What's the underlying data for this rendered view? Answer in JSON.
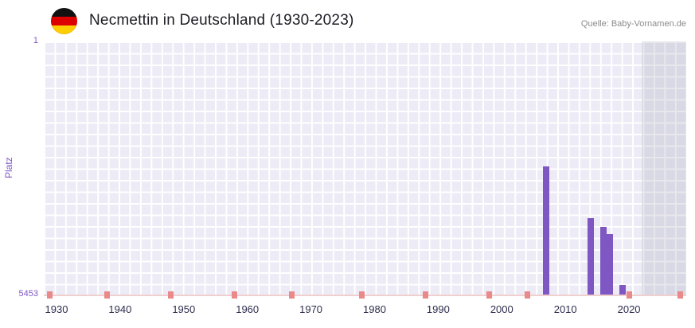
{
  "header": {
    "title": "Necmettin in Deutschland (1930-2023)",
    "source": "Quelle: Baby-Vornamen.de",
    "flag_icon": "germany-flag-icon"
  },
  "chart_data": {
    "type": "bar",
    "title": "Necmettin in Deutschland (1930-2023)",
    "ylabel": "Platz",
    "xlabel": "",
    "y_axis": {
      "min": 1,
      "max": 5453,
      "inverted": true,
      "top_tick": "1",
      "bottom_tick": "5453"
    },
    "x_ticks": [
      "1930",
      "1940",
      "1950",
      "1960",
      "1970",
      "1980",
      "1990",
      "2000",
      "2010",
      "2020"
    ],
    "x_range": [
      1928,
      2029
    ],
    "grid": true,
    "bars": [
      {
        "year": 2007,
        "rank": 2700
      },
      {
        "year": 2014,
        "rank": 3800
      },
      {
        "year": 2016,
        "rank": 4000
      },
      {
        "year": 2017,
        "rank": 4150
      },
      {
        "year": 2019,
        "rank": 5250
      }
    ],
    "no_data_marker_years": [
      1929,
      1938,
      1948,
      1958,
      1967,
      1978,
      1988,
      1998,
      2004,
      2020,
      2028
    ],
    "future_band_start_year": 2022,
    "colors": {
      "bar": "#7e57c2",
      "marker": "#e98989",
      "plot_bg": "#ecebf6",
      "grid_line": "#ffffff",
      "future_band": "rgba(160,160,178,0.25)",
      "axis_text": "#7e57c2",
      "tick_text": "#2e2e4e",
      "axis_line": "#f0cfcf",
      "title_text": "#1c1c24",
      "source_text": "#8b8b8b"
    }
  }
}
